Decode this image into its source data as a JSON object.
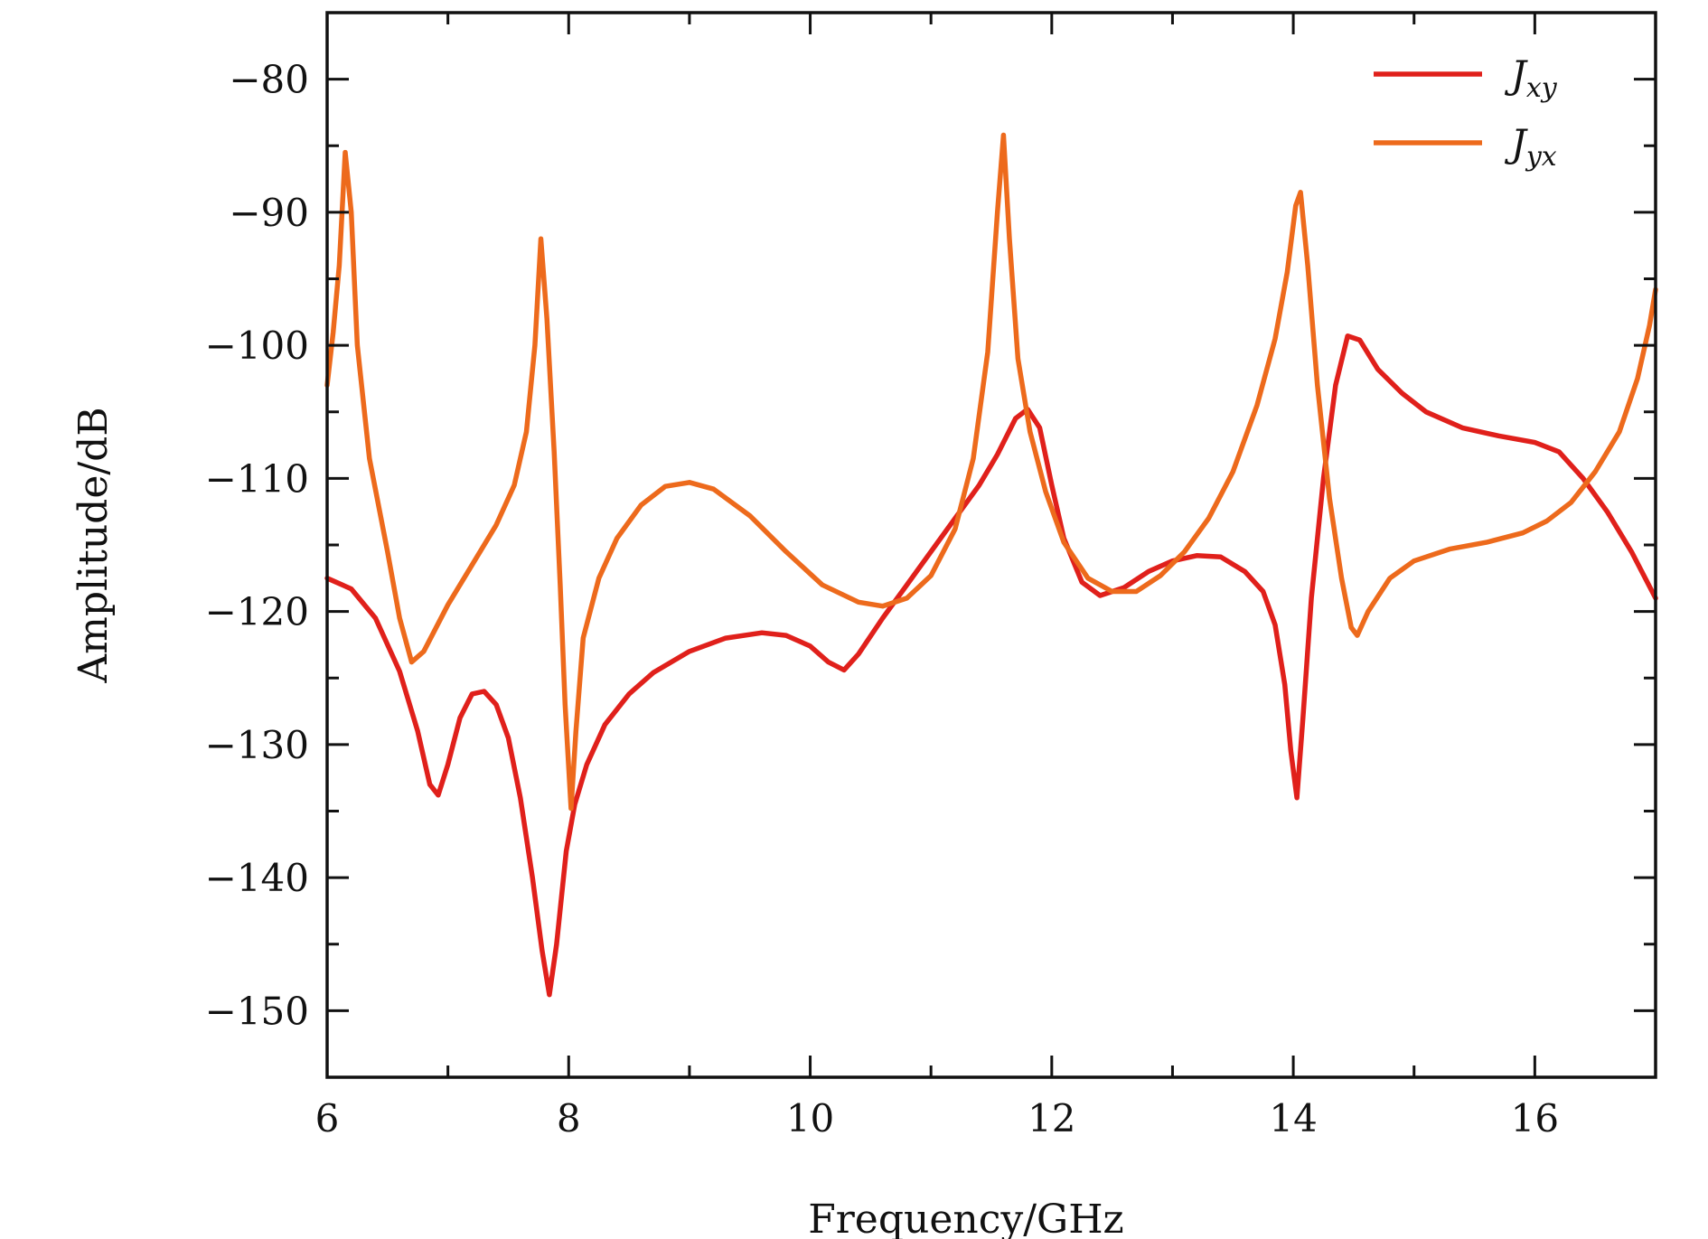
{
  "chart_data": {
    "type": "line",
    "title": "",
    "xlabel": "Frequency/GHz",
    "ylabel": "Amplitude/dB",
    "xlim": [
      6,
      17
    ],
    "ylim": [
      -155,
      -75
    ],
    "xticks": [
      6,
      8,
      10,
      12,
      14,
      16
    ],
    "xtick_labels": [
      "6",
      "8",
      "10",
      "12",
      "14",
      "16"
    ],
    "yticks": [
      -80,
      -90,
      -100,
      -110,
      -120,
      -130,
      -140,
      -150
    ],
    "ytick_labels": [
      "−80",
      "−90",
      "−100",
      "−110",
      "−120",
      "−130",
      "−140",
      "−150"
    ],
    "grid": false,
    "legend_position": "top-right",
    "series": [
      {
        "name_main": "J",
        "name_sub": "xy",
        "color": "#e0201b",
        "points": [
          [
            6.0,
            -117.5
          ],
          [
            6.2,
            -118.3
          ],
          [
            6.4,
            -120.5
          ],
          [
            6.6,
            -124.5
          ],
          [
            6.75,
            -129
          ],
          [
            6.85,
            -133
          ],
          [
            6.92,
            -133.8
          ],
          [
            7.0,
            -131.5
          ],
          [
            7.1,
            -128
          ],
          [
            7.2,
            -126.2
          ],
          [
            7.3,
            -126.0
          ],
          [
            7.4,
            -127
          ],
          [
            7.5,
            -129.5
          ],
          [
            7.6,
            -134
          ],
          [
            7.7,
            -140
          ],
          [
            7.78,
            -145.5
          ],
          [
            7.84,
            -148.8
          ],
          [
            7.9,
            -145
          ],
          [
            7.98,
            -138
          ],
          [
            8.05,
            -134.5
          ],
          [
            8.15,
            -131.5
          ],
          [
            8.3,
            -128.5
          ],
          [
            8.5,
            -126.2
          ],
          [
            8.7,
            -124.6
          ],
          [
            9.0,
            -123.0
          ],
          [
            9.3,
            -122.0
          ],
          [
            9.6,
            -121.6
          ],
          [
            9.8,
            -121.8
          ],
          [
            10.0,
            -122.6
          ],
          [
            10.15,
            -123.8
          ],
          [
            10.28,
            -124.4
          ],
          [
            10.4,
            -123.2
          ],
          [
            10.6,
            -120.5
          ],
          [
            10.8,
            -118.0
          ],
          [
            11.0,
            -115.5
          ],
          [
            11.2,
            -113.0
          ],
          [
            11.4,
            -110.5
          ],
          [
            11.55,
            -108.2
          ],
          [
            11.7,
            -105.5
          ],
          [
            11.8,
            -104.8
          ],
          [
            11.9,
            -106.2
          ],
          [
            12.0,
            -110.5
          ],
          [
            12.1,
            -114.5
          ],
          [
            12.25,
            -117.8
          ],
          [
            12.4,
            -118.8
          ],
          [
            12.6,
            -118.2
          ],
          [
            12.8,
            -117.0
          ],
          [
            13.0,
            -116.2
          ],
          [
            13.2,
            -115.8
          ],
          [
            13.4,
            -115.9
          ],
          [
            13.6,
            -117.0
          ],
          [
            13.75,
            -118.5
          ],
          [
            13.85,
            -121
          ],
          [
            13.93,
            -125.5
          ],
          [
            13.98,
            -130.5
          ],
          [
            14.03,
            -134.0
          ],
          [
            14.08,
            -128
          ],
          [
            14.15,
            -119
          ],
          [
            14.25,
            -110
          ],
          [
            14.35,
            -103
          ],
          [
            14.45,
            -99.3
          ],
          [
            14.55,
            -99.6
          ],
          [
            14.7,
            -101.8
          ],
          [
            14.9,
            -103.6
          ],
          [
            15.1,
            -105.0
          ],
          [
            15.4,
            -106.2
          ],
          [
            15.7,
            -106.8
          ],
          [
            16.0,
            -107.3
          ],
          [
            16.2,
            -108.0
          ],
          [
            16.4,
            -110.0
          ],
          [
            16.6,
            -112.5
          ],
          [
            16.8,
            -115.5
          ],
          [
            17.0,
            -119.0
          ]
        ]
      },
      {
        "name_main": "J",
        "name_sub": "yx",
        "color": "#ed6a1c",
        "points": [
          [
            6.0,
            -103.0
          ],
          [
            6.05,
            -99
          ],
          [
            6.1,
            -94
          ],
          [
            6.15,
            -85.5
          ],
          [
            6.2,
            -90
          ],
          [
            6.25,
            -100
          ],
          [
            6.35,
            -108.5
          ],
          [
            6.5,
            -115.5
          ],
          [
            6.6,
            -120.5
          ],
          [
            6.7,
            -123.8
          ],
          [
            6.8,
            -123.0
          ],
          [
            7.0,
            -119.5
          ],
          [
            7.2,
            -116.5
          ],
          [
            7.4,
            -113.5
          ],
          [
            7.55,
            -110.5
          ],
          [
            7.65,
            -106.5
          ],
          [
            7.72,
            -100
          ],
          [
            7.77,
            -92
          ],
          [
            7.82,
            -98
          ],
          [
            7.88,
            -108
          ],
          [
            7.93,
            -118
          ],
          [
            7.97,
            -127
          ],
          [
            8.02,
            -134.8
          ],
          [
            8.06,
            -129
          ],
          [
            8.12,
            -122
          ],
          [
            8.25,
            -117.5
          ],
          [
            8.4,
            -114.5
          ],
          [
            8.6,
            -112.0
          ],
          [
            8.8,
            -110.6
          ],
          [
            9.0,
            -110.3
          ],
          [
            9.2,
            -110.8
          ],
          [
            9.5,
            -112.8
          ],
          [
            9.8,
            -115.5
          ],
          [
            10.1,
            -118.0
          ],
          [
            10.4,
            -119.3
          ],
          [
            10.6,
            -119.6
          ],
          [
            10.8,
            -119.0
          ],
          [
            11.0,
            -117.3
          ],
          [
            11.2,
            -113.8
          ],
          [
            11.35,
            -108.5
          ],
          [
            11.47,
            -100.5
          ],
          [
            11.55,
            -90
          ],
          [
            11.6,
            -84.2
          ],
          [
            11.65,
            -92
          ],
          [
            11.72,
            -101
          ],
          [
            11.82,
            -106.5
          ],
          [
            11.95,
            -111.0
          ],
          [
            12.1,
            -114.8
          ],
          [
            12.3,
            -117.5
          ],
          [
            12.5,
            -118.5
          ],
          [
            12.7,
            -118.5
          ],
          [
            12.9,
            -117.3
          ],
          [
            13.1,
            -115.5
          ],
          [
            13.3,
            -113.0
          ],
          [
            13.5,
            -109.5
          ],
          [
            13.7,
            -104.5
          ],
          [
            13.85,
            -99.5
          ],
          [
            13.95,
            -94.5
          ],
          [
            14.02,
            -89.5
          ],
          [
            14.06,
            -88.5
          ],
          [
            14.12,
            -94
          ],
          [
            14.2,
            -103
          ],
          [
            14.3,
            -111.5
          ],
          [
            14.4,
            -117.5
          ],
          [
            14.48,
            -121.2
          ],
          [
            14.53,
            -121.8
          ],
          [
            14.62,
            -120.0
          ],
          [
            14.8,
            -117.5
          ],
          [
            15.0,
            -116.2
          ],
          [
            15.3,
            -115.3
          ],
          [
            15.6,
            -114.8
          ],
          [
            15.9,
            -114.1
          ],
          [
            16.1,
            -113.2
          ],
          [
            16.3,
            -111.8
          ],
          [
            16.5,
            -109.5
          ],
          [
            16.7,
            -106.5
          ],
          [
            16.85,
            -102.5
          ],
          [
            16.95,
            -98.5
          ],
          [
            17.0,
            -95.8
          ]
        ]
      }
    ]
  }
}
